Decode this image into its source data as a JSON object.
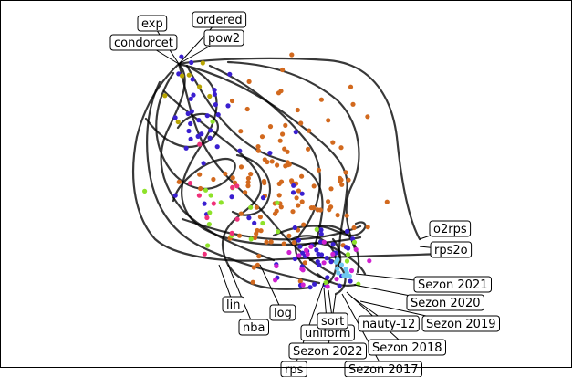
{
  "labels": [
    {
      "id": "exp",
      "text": "exp"
    },
    {
      "id": "ordered",
      "text": "ordered"
    },
    {
      "id": "condorcet",
      "text": "condorcet"
    },
    {
      "id": "pow2",
      "text": "pow2"
    },
    {
      "id": "o2rps",
      "text": "o2rps"
    },
    {
      "id": "rps2o",
      "text": "rps2o"
    },
    {
      "id": "sezon-2021",
      "text": "Sezon 2021"
    },
    {
      "id": "sezon-2020",
      "text": "Sezon 2020"
    },
    {
      "id": "sezon-2019",
      "text": "Sezon 2019"
    },
    {
      "id": "nauty-12",
      "text": "nauty-12"
    },
    {
      "id": "sezon-2018",
      "text": "Sezon 2018"
    },
    {
      "id": "sezon-2017",
      "text": "Sezon 2017"
    },
    {
      "id": "sezon-2022",
      "text": "Sezon 2022"
    },
    {
      "id": "rps",
      "text": "rps"
    },
    {
      "id": "uniform",
      "text": "uniform"
    },
    {
      "id": "sort",
      "text": "sort"
    },
    {
      "id": "nba",
      "text": "nba"
    },
    {
      "id": "log",
      "text": "log"
    },
    {
      "id": "lin",
      "text": "lin"
    }
  ],
  "colors": {
    "orange": "#d2691e",
    "blue": "#3a1fd0",
    "olive": "#b8a400",
    "green": "#8ee22a",
    "pink": "#f0307a",
    "magenta": "#d020d0",
    "cyan": "#6ec8f0",
    "line": "#000000"
  }
}
